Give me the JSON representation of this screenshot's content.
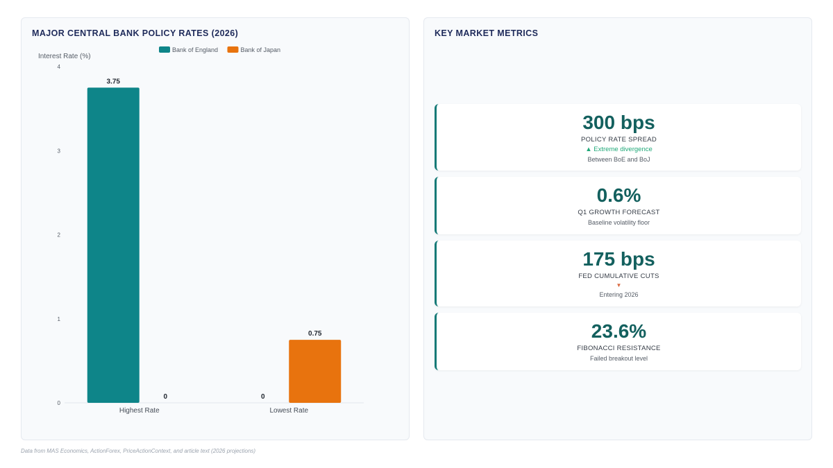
{
  "chart_panel": {
    "title": "MAJOR CENTRAL BANK POLICY RATES (2026)"
  },
  "chart_data": {
    "type": "bar",
    "categories": [
      "Highest Rate",
      "Lowest Rate"
    ],
    "series": [
      {
        "name": "Bank of England",
        "values": [
          3.75,
          0
        ],
        "color": "#0e8589"
      },
      {
        "name": "Bank of Japan",
        "values": [
          0,
          0.75
        ],
        "color": "#e8730e"
      }
    ],
    "ylabel": "Interest Rate (%)",
    "ylim": [
      0,
      4
    ],
    "yticks": [
      "0",
      "1",
      "2",
      "3",
      "4"
    ],
    "data_labels": [
      [
        "3.75",
        "0"
      ],
      [
        "0",
        "0.75"
      ]
    ],
    "legend_position": "top-center",
    "grid": false
  },
  "metrics_panel": {
    "title": "KEY MARKET METRICS",
    "cards": [
      {
        "value": "300 bps",
        "label": "POLICY RATE SPREAD",
        "trend": "▲ Extreme divergence",
        "trend_dir": "up",
        "sub": "Between BoE and BoJ"
      },
      {
        "value": "0.6%",
        "label": "Q1 GROWTH FORECAST",
        "trend": "",
        "trend_dir": "",
        "sub": "Baseline volatility floor"
      },
      {
        "value": "175 bps",
        "label": "FED CUMULATIVE CUTS",
        "trend": "▼",
        "trend_dir": "down",
        "sub": "Entering 2026"
      },
      {
        "value": "23.6%",
        "label": "FIBONACCI RESISTANCE",
        "trend": "",
        "trend_dir": "",
        "sub": "Failed breakout level"
      }
    ]
  },
  "footer": {
    "source": "Data from MAS Economics, ActionForex, PriceActionContext, and article text (2026 projections)"
  }
}
